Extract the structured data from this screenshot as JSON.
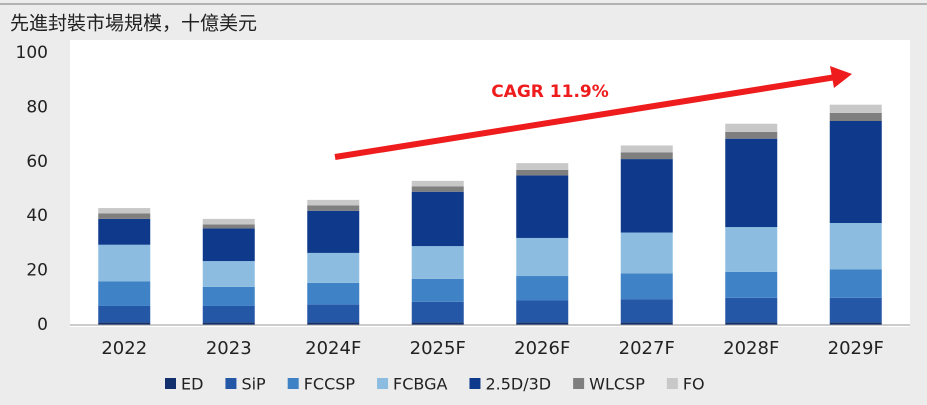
{
  "chart_data": {
    "type": "stacked_bar",
    "title": "先進封裝市場規模，十億美元",
    "categories": [
      "2022",
      "2023",
      "2024F",
      "2025F",
      "2026F",
      "2027F",
      "2028F",
      "2029F"
    ],
    "series": [
      {
        "name": "ED",
        "color": "#13306e",
        "values": [
          1,
          1,
          1,
          1,
          1,
          1,
          1,
          1
        ]
      },
      {
        "name": "SiP",
        "color": "#2557a7",
        "values": [
          6,
          6,
          6.5,
          7.5,
          8,
          8.5,
          9,
          9
        ]
      },
      {
        "name": "FCCSP",
        "color": "#3f82c6",
        "values": [
          9,
          7,
          8,
          8.5,
          9,
          9.5,
          9.5,
          10.5
        ]
      },
      {
        "name": "FCBGA",
        "color": "#8cbde0",
        "values": [
          13.5,
          9.5,
          11,
          12,
          14,
          15,
          16.5,
          17
        ]
      },
      {
        "name": "2.5D/3D",
        "color": "#0f3a8c",
        "values": [
          9.5,
          12,
          15.5,
          20,
          23,
          27,
          32.5,
          37.5
        ]
      },
      {
        "name": "WLCSP",
        "color": "#7f7f7f",
        "values": [
          2,
          1.5,
          2,
          2,
          2,
          2.5,
          2.5,
          3
        ]
      },
      {
        "name": "FO",
        "color": "#c8c8c8",
        "values": [
          2,
          2,
          2,
          2,
          2.5,
          2.5,
          3,
          3
        ]
      }
    ],
    "ylim": [
      0,
      100
    ],
    "yticks": [
      0,
      20,
      40,
      60,
      80,
      100
    ],
    "annotation": "CAGR 11.9%",
    "legend": "bottom"
  }
}
